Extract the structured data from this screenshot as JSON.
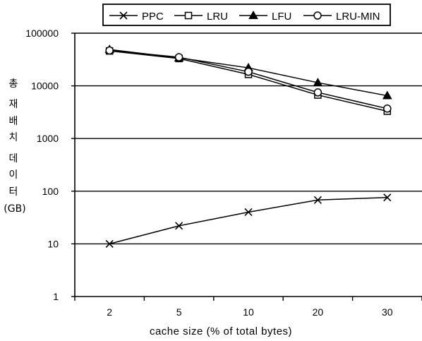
{
  "chart_data": {
    "type": "line",
    "y_scale": "log",
    "ylim": [
      1,
      100000
    ],
    "categories": [
      "2",
      "5",
      "10",
      "20",
      "30"
    ],
    "yticks": [
      "100000",
      "10000",
      "1000",
      "100",
      "10",
      "1"
    ],
    "ylabel_chars": [
      "총",
      "재",
      "배",
      "치",
      "데",
      "이",
      "터"
    ],
    "ylabel_unit": "(GB)",
    "xlabel": "cache size (% of total bytes)",
    "grid": "horizontal",
    "legend_position": "top",
    "series": [
      {
        "name": "PPC",
        "marker": "x",
        "values": [
          10,
          22,
          40,
          68,
          76
        ]
      },
      {
        "name": "LRU",
        "marker": "square",
        "values": [
          46000,
          33000,
          16500,
          6700,
          3300
        ]
      },
      {
        "name": "LFU",
        "marker": "triangle",
        "values": [
          49000,
          34000,
          22000,
          11500,
          6500
        ]
      },
      {
        "name": "LRU-MIN",
        "marker": "circle",
        "values": [
          47000,
          35000,
          18500,
          7500,
          3700
        ]
      }
    ]
  }
}
